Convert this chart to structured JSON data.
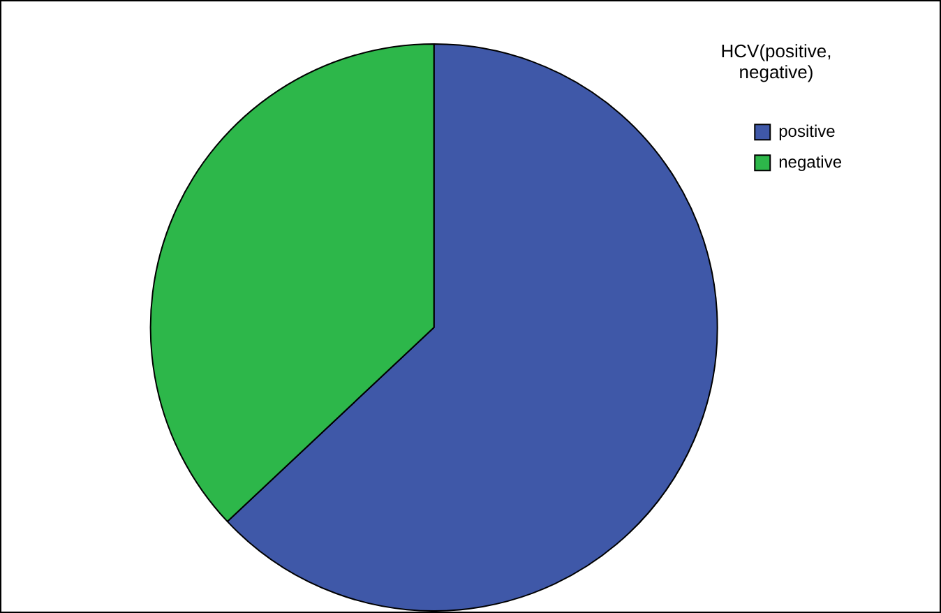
{
  "chart_data": {
    "type": "pie",
    "legend_title": "HCV(positive, negative)",
    "categories": [
      "positive",
      "negative"
    ],
    "values": [
      63,
      37
    ],
    "colors": [
      "#3f58a8",
      "#2db74a"
    ],
    "legend": "top right"
  }
}
